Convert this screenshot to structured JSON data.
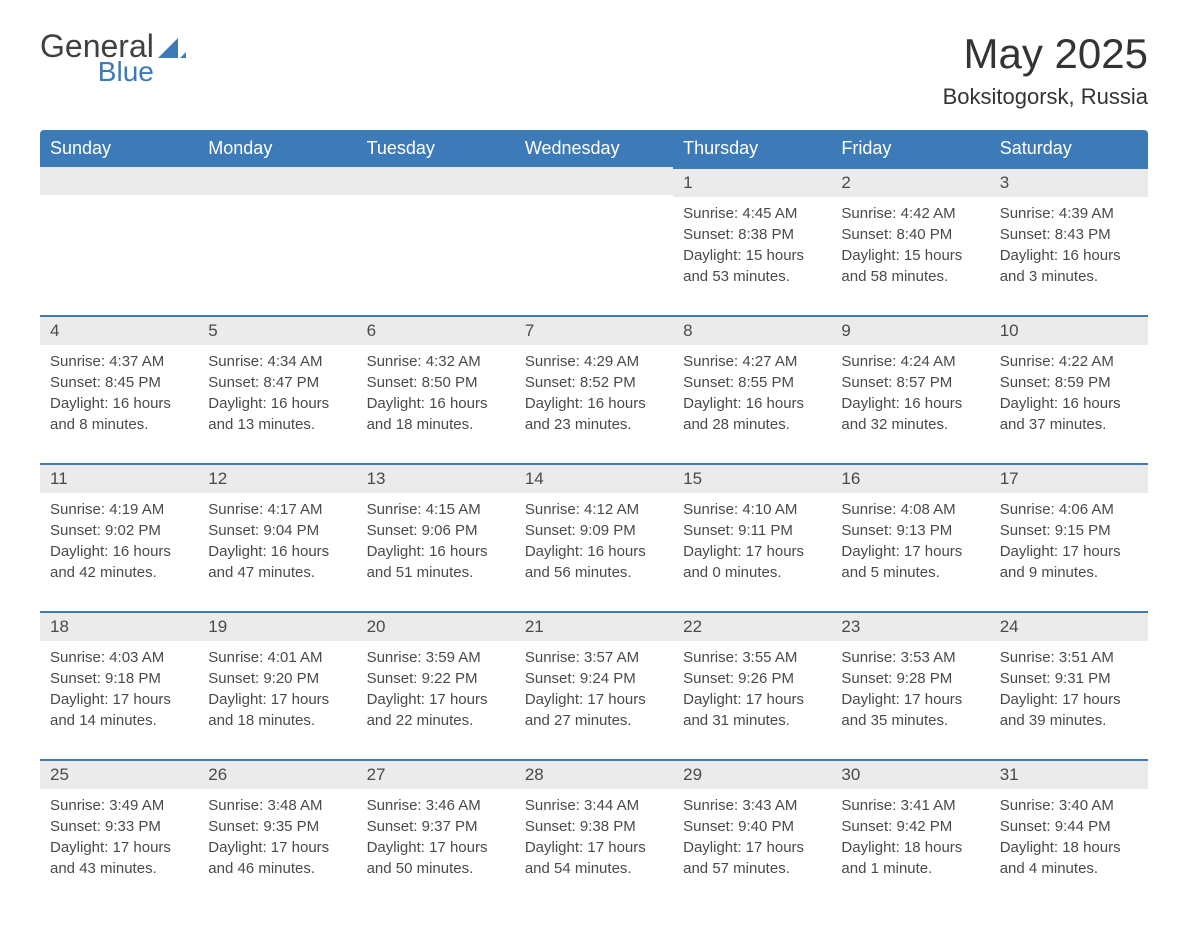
{
  "logo": {
    "general": "General",
    "blue": "Blue"
  },
  "title": "May 2025",
  "location": "Boksitogorsk, Russia",
  "colors": {
    "header_bg": "#3d7ab8",
    "header_text": "#ffffff",
    "day_bg": "#ebebeb",
    "day_border": "#3d7ab8",
    "text": "#4a4a4a",
    "logo_gray": "#404040",
    "logo_blue": "#3d7ab8"
  },
  "weekdays": [
    "Sunday",
    "Monday",
    "Tuesday",
    "Wednesday",
    "Thursday",
    "Friday",
    "Saturday"
  ],
  "weeks": [
    [
      {
        "day": "",
        "sunrise": "",
        "sunset": "",
        "daylight": ""
      },
      {
        "day": "",
        "sunrise": "",
        "sunset": "",
        "daylight": ""
      },
      {
        "day": "",
        "sunrise": "",
        "sunset": "",
        "daylight": ""
      },
      {
        "day": "",
        "sunrise": "",
        "sunset": "",
        "daylight": ""
      },
      {
        "day": "1",
        "sunrise": "Sunrise: 4:45 AM",
        "sunset": "Sunset: 8:38 PM",
        "daylight": "Daylight: 15 hours and 53 minutes."
      },
      {
        "day": "2",
        "sunrise": "Sunrise: 4:42 AM",
        "sunset": "Sunset: 8:40 PM",
        "daylight": "Daylight: 15 hours and 58 minutes."
      },
      {
        "day": "3",
        "sunrise": "Sunrise: 4:39 AM",
        "sunset": "Sunset: 8:43 PM",
        "daylight": "Daylight: 16 hours and 3 minutes."
      }
    ],
    [
      {
        "day": "4",
        "sunrise": "Sunrise: 4:37 AM",
        "sunset": "Sunset: 8:45 PM",
        "daylight": "Daylight: 16 hours and 8 minutes."
      },
      {
        "day": "5",
        "sunrise": "Sunrise: 4:34 AM",
        "sunset": "Sunset: 8:47 PM",
        "daylight": "Daylight: 16 hours and 13 minutes."
      },
      {
        "day": "6",
        "sunrise": "Sunrise: 4:32 AM",
        "sunset": "Sunset: 8:50 PM",
        "daylight": "Daylight: 16 hours and 18 minutes."
      },
      {
        "day": "7",
        "sunrise": "Sunrise: 4:29 AM",
        "sunset": "Sunset: 8:52 PM",
        "daylight": "Daylight: 16 hours and 23 minutes."
      },
      {
        "day": "8",
        "sunrise": "Sunrise: 4:27 AM",
        "sunset": "Sunset: 8:55 PM",
        "daylight": "Daylight: 16 hours and 28 minutes."
      },
      {
        "day": "9",
        "sunrise": "Sunrise: 4:24 AM",
        "sunset": "Sunset: 8:57 PM",
        "daylight": "Daylight: 16 hours and 32 minutes."
      },
      {
        "day": "10",
        "sunrise": "Sunrise: 4:22 AM",
        "sunset": "Sunset: 8:59 PM",
        "daylight": "Daylight: 16 hours and 37 minutes."
      }
    ],
    [
      {
        "day": "11",
        "sunrise": "Sunrise: 4:19 AM",
        "sunset": "Sunset: 9:02 PM",
        "daylight": "Daylight: 16 hours and 42 minutes."
      },
      {
        "day": "12",
        "sunrise": "Sunrise: 4:17 AM",
        "sunset": "Sunset: 9:04 PM",
        "daylight": "Daylight: 16 hours and 47 minutes."
      },
      {
        "day": "13",
        "sunrise": "Sunrise: 4:15 AM",
        "sunset": "Sunset: 9:06 PM",
        "daylight": "Daylight: 16 hours and 51 minutes."
      },
      {
        "day": "14",
        "sunrise": "Sunrise: 4:12 AM",
        "sunset": "Sunset: 9:09 PM",
        "daylight": "Daylight: 16 hours and 56 minutes."
      },
      {
        "day": "15",
        "sunrise": "Sunrise: 4:10 AM",
        "sunset": "Sunset: 9:11 PM",
        "daylight": "Daylight: 17 hours and 0 minutes."
      },
      {
        "day": "16",
        "sunrise": "Sunrise: 4:08 AM",
        "sunset": "Sunset: 9:13 PM",
        "daylight": "Daylight: 17 hours and 5 minutes."
      },
      {
        "day": "17",
        "sunrise": "Sunrise: 4:06 AM",
        "sunset": "Sunset: 9:15 PM",
        "daylight": "Daylight: 17 hours and 9 minutes."
      }
    ],
    [
      {
        "day": "18",
        "sunrise": "Sunrise: 4:03 AM",
        "sunset": "Sunset: 9:18 PM",
        "daylight": "Daylight: 17 hours and 14 minutes."
      },
      {
        "day": "19",
        "sunrise": "Sunrise: 4:01 AM",
        "sunset": "Sunset: 9:20 PM",
        "daylight": "Daylight: 17 hours and 18 minutes."
      },
      {
        "day": "20",
        "sunrise": "Sunrise: 3:59 AM",
        "sunset": "Sunset: 9:22 PM",
        "daylight": "Daylight: 17 hours and 22 minutes."
      },
      {
        "day": "21",
        "sunrise": "Sunrise: 3:57 AM",
        "sunset": "Sunset: 9:24 PM",
        "daylight": "Daylight: 17 hours and 27 minutes."
      },
      {
        "day": "22",
        "sunrise": "Sunrise: 3:55 AM",
        "sunset": "Sunset: 9:26 PM",
        "daylight": "Daylight: 17 hours and 31 minutes."
      },
      {
        "day": "23",
        "sunrise": "Sunrise: 3:53 AM",
        "sunset": "Sunset: 9:28 PM",
        "daylight": "Daylight: 17 hours and 35 minutes."
      },
      {
        "day": "24",
        "sunrise": "Sunrise: 3:51 AM",
        "sunset": "Sunset: 9:31 PM",
        "daylight": "Daylight: 17 hours and 39 minutes."
      }
    ],
    [
      {
        "day": "25",
        "sunrise": "Sunrise: 3:49 AM",
        "sunset": "Sunset: 9:33 PM",
        "daylight": "Daylight: 17 hours and 43 minutes."
      },
      {
        "day": "26",
        "sunrise": "Sunrise: 3:48 AM",
        "sunset": "Sunset: 9:35 PM",
        "daylight": "Daylight: 17 hours and 46 minutes."
      },
      {
        "day": "27",
        "sunrise": "Sunrise: 3:46 AM",
        "sunset": "Sunset: 9:37 PM",
        "daylight": "Daylight: 17 hours and 50 minutes."
      },
      {
        "day": "28",
        "sunrise": "Sunrise: 3:44 AM",
        "sunset": "Sunset: 9:38 PM",
        "daylight": "Daylight: 17 hours and 54 minutes."
      },
      {
        "day": "29",
        "sunrise": "Sunrise: 3:43 AM",
        "sunset": "Sunset: 9:40 PM",
        "daylight": "Daylight: 17 hours and 57 minutes."
      },
      {
        "day": "30",
        "sunrise": "Sunrise: 3:41 AM",
        "sunset": "Sunset: 9:42 PM",
        "daylight": "Daylight: 18 hours and 1 minute."
      },
      {
        "day": "31",
        "sunrise": "Sunrise: 3:40 AM",
        "sunset": "Sunset: 9:44 PM",
        "daylight": "Daylight: 18 hours and 4 minutes."
      }
    ]
  ]
}
